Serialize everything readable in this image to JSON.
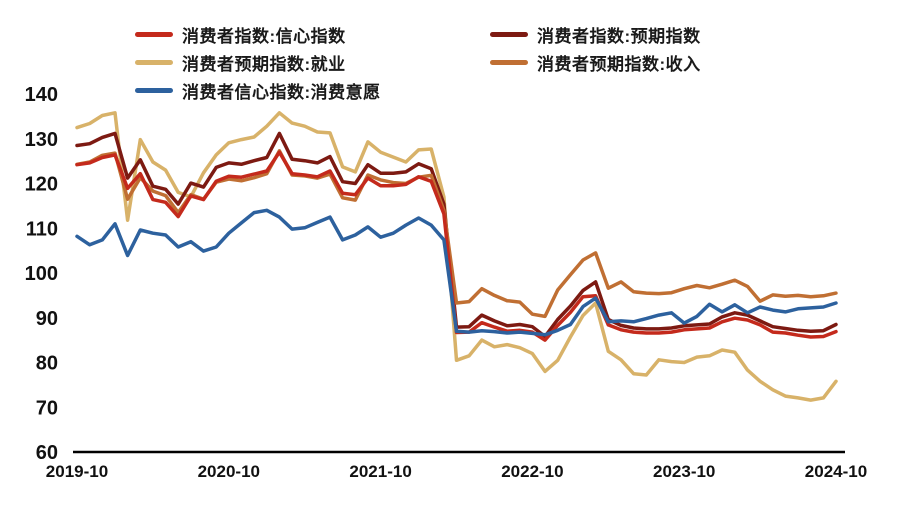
{
  "chart_data": {
    "type": "line",
    "title": "",
    "xlabel": "",
    "ylabel": "",
    "x_start": "2019-10",
    "x_end": "2024-10",
    "x_frequency": "monthly",
    "months": 61,
    "x_tick_labels": [
      "2019-10",
      "2020-10",
      "2021-10",
      "2022-10",
      "2023-10",
      "2024-10"
    ],
    "x_tick_month_indices": [
      0,
      12,
      24,
      36,
      48,
      60
    ],
    "y_ticks": [
      60,
      70,
      80,
      90,
      100,
      110,
      120,
      130,
      140
    ],
    "ylim": [
      60,
      140
    ],
    "grid": false,
    "legend_position": "top",
    "axis_color": "#000000",
    "background_color": "#ffffff",
    "series": [
      {
        "name": "消费者预期指数:就业",
        "color": "#d8b269",
        "values": [
          132.5,
          133.4,
          135.2,
          135.8,
          111.8,
          129.8,
          124.8,
          123.0,
          118.0,
          117.0,
          122.4,
          126.4,
          129.1,
          129.8,
          130.4,
          132.8,
          135.8,
          133.5,
          132.8,
          131.5,
          131.3,
          123.7,
          122.6,
          129.3,
          127.0,
          125.9,
          124.8,
          127.5,
          127.7,
          117.0,
          80.5,
          81.5,
          85.0,
          83.5,
          84.0,
          83.3,
          82.0,
          78.0,
          80.5,
          85.7,
          90.5,
          93.3,
          82.5,
          80.6,
          77.5,
          77.2,
          80.6,
          80.2,
          80.0,
          81.2,
          81.5,
          82.8,
          82.3,
          78.3,
          75.8,
          73.9,
          72.5,
          72.1,
          71.6,
          72.1,
          75.8
        ]
      },
      {
        "name": "消费者指数:预期指数",
        "color": "#7d1a12",
        "values": [
          128.5,
          128.9,
          130.3,
          131.2,
          121.2,
          125.3,
          119.4,
          118.7,
          115.4,
          120.1,
          119.2,
          123.6,
          124.6,
          124.3,
          125.1,
          125.8,
          131.2,
          125.4,
          125.1,
          124.6,
          126.0,
          120.4,
          120.0,
          124.2,
          122.3,
          122.3,
          122.6,
          124.4,
          123.3,
          115.4,
          87.9,
          88.0,
          90.6,
          89.3,
          88.2,
          88.5,
          88.0,
          85.8,
          89.6,
          92.6,
          96.1,
          98.0,
          89.6,
          88.3,
          87.7,
          87.5,
          87.5,
          87.7,
          88.2,
          88.4,
          88.6,
          90.2,
          91.1,
          90.6,
          89.3,
          88.0,
          87.6,
          87.2,
          87.0,
          87.1,
          88.5
        ]
      },
      {
        "name": "消费者预期指数:收入",
        "color": "#c06f33",
        "values": [
          124.3,
          124.8,
          126.3,
          126.8,
          116.5,
          121.3,
          118.3,
          117.3,
          113.5,
          117.5,
          116.5,
          120.3,
          121.0,
          120.6,
          121.3,
          122.2,
          127.3,
          121.9,
          121.7,
          121.2,
          122.1,
          116.8,
          116.3,
          121.9,
          120.8,
          120.2,
          120.0,
          121.4,
          121.8,
          114.0,
          93.3,
          93.6,
          96.5,
          95.0,
          93.8,
          93.5,
          90.8,
          90.3,
          96.2,
          99.6,
          102.9,
          104.5,
          96.6,
          98.0,
          95.8,
          95.5,
          95.4,
          95.6,
          96.5,
          97.2,
          96.7,
          97.5,
          98.4,
          97.0,
          93.7,
          95.1,
          94.8,
          95.0,
          94.7,
          94.9,
          95.5
        ]
      },
      {
        "name": "消费者指数:信心指数",
        "color": "#c42a1c",
        "values": [
          124.2,
          124.6,
          125.8,
          126.4,
          118.9,
          122.2,
          116.4,
          115.8,
          112.6,
          117.2,
          116.4,
          120.5,
          121.6,
          121.4,
          122.1,
          122.8,
          127.0,
          122.2,
          121.9,
          121.5,
          122.8,
          117.8,
          117.5,
          121.2,
          119.5,
          119.5,
          119.8,
          121.5,
          120.5,
          113.2,
          86.7,
          86.8,
          88.9,
          87.9,
          87.0,
          87.2,
          86.8,
          85.0,
          88.3,
          91.2,
          94.7,
          94.9,
          88.4,
          87.3,
          86.8,
          86.6,
          86.6,
          86.8,
          87.3,
          87.5,
          87.7,
          89.1,
          89.9,
          89.5,
          88.4,
          86.8,
          86.6,
          86.1,
          85.7,
          85.8,
          86.9
        ]
      },
      {
        "name": "消费者信心指数:消费意愿",
        "color": "#2d619e",
        "values": [
          108.2,
          106.3,
          107.4,
          111.0,
          103.9,
          109.6,
          108.9,
          108.5,
          105.8,
          107.0,
          104.9,
          105.8,
          108.9,
          111.2,
          113.5,
          114.0,
          112.5,
          109.8,
          110.1,
          111.3,
          112.5,
          107.4,
          108.5,
          110.3,
          108.0,
          108.9,
          110.7,
          112.3,
          110.7,
          107.4,
          87.0,
          86.8,
          87.1,
          86.9,
          86.6,
          86.8,
          86.5,
          86.2,
          87.2,
          88.5,
          92.5,
          94.4,
          89.1,
          89.3,
          89.1,
          89.8,
          90.6,
          91.1,
          88.8,
          90.3,
          93.0,
          91.3,
          92.9,
          91.1,
          92.4,
          91.7,
          91.3,
          92.0,
          92.2,
          92.4,
          93.3
        ]
      }
    ]
  },
  "legend": {
    "items": [
      {
        "label": "消费者指数:信心指数",
        "color": "#c42a1c"
      },
      {
        "label": "消费者指数:预期指数",
        "color": "#7d1a12"
      },
      {
        "label": "消费者预期指数:就业",
        "color": "#d8b269"
      },
      {
        "label": "消费者预期指数:收入",
        "color": "#c06f33"
      },
      {
        "label": "消费者信心指数:消费意愿",
        "color": "#2d619e"
      }
    ]
  }
}
